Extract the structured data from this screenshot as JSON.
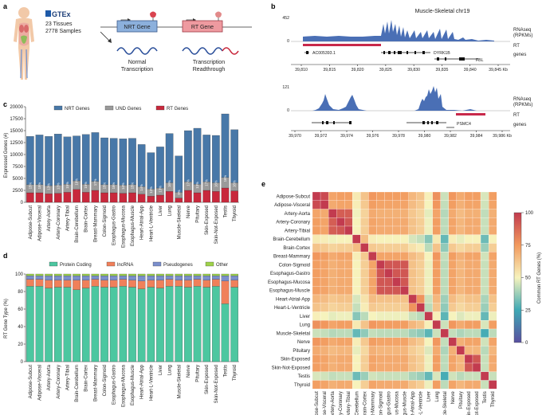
{
  "panels": {
    "a": "a",
    "b": "b",
    "c": "c",
    "d": "d",
    "e": "e"
  },
  "panel_a": {
    "gtex": "GTEx",
    "tissues": "23 Tissues",
    "samples": "2778 Samples",
    "nrt_gene": "NRT Gene",
    "rt_gene": "RT Gene",
    "normal_1": "Normal",
    "normal_2": "Transcription",
    "rt_1": "Transcription",
    "rt_2": "Readthrough"
  },
  "panel_b": {
    "title": "Muscle-Skeletal chr19",
    "top": {
      "ymax": "452",
      "y0": "0",
      "genes": [
        "AC005393.1",
        "DYRK1B",
        "FBL"
      ],
      "ticks": [
        "39,810",
        "39,815",
        "39,820",
        "39,825",
        "39,830",
        "39,835",
        "39,840",
        "39,845 Kb"
      ]
    },
    "bottom": {
      "ymax": "121",
      "y0": "0",
      "genes": [
        "PSMC4"
      ],
      "ticks": [
        "39,970",
        "39,972",
        "39,974",
        "39,976",
        "39,978",
        "39,980",
        "39,982",
        "39,984",
        "39,986 Kb"
      ]
    },
    "labels": {
      "rnaseq_1": "RNAseq",
      "rnaseq_2": "(RPKMs)",
      "rt": "RT",
      "genes": "genes"
    },
    "colors": {
      "signal": "#4a6fb5",
      "rt": "#c8284a"
    }
  },
  "tissues": [
    "Adipose-Subcut",
    "Adipose-Visceral",
    "Artery-Aorta",
    "Artery-Coronary",
    "Artery-Tibial",
    "Brain-Cerebellum",
    "Brain-Cortex",
    "Breast-Mammary",
    "Colon-Sigmoid",
    "Esophagus-Gastro",
    "Esophagus-Mucosa",
    "Esophagus-Muscle",
    "Heart-Atrial-App",
    "Heart-L-Ventricle",
    "Liver",
    "Lung",
    "Muscle-Skeletal",
    "Nerve",
    "Pituitary",
    "Skin-Exposed",
    "Skin-Not-Exposed",
    "Testis",
    "Thyroid"
  ],
  "chart_data": [
    {
      "type": "bar",
      "stacked": true,
      "ylabel": "Expressed Genes (#)",
      "ylim": [
        0,
        20000
      ],
      "yticks": [
        "0",
        "2500",
        "5000",
        "7500",
        "10000",
        "12500",
        "15000",
        "17500",
        "20000"
      ],
      "legend": [
        "NRT Genes",
        "UND Genes",
        "RT Genes"
      ],
      "colors": [
        "#4878a8",
        "#9a9a9a",
        "#c8283c"
      ],
      "series": [
        {
          "name": "RT Genes",
          "values": [
            2000,
            2000,
            1800,
            1900,
            2100,
            2700,
            2100,
            2500,
            2000,
            2000,
            1900,
            2000,
            1700,
            1300,
            1500,
            2300,
            900,
            2500,
            2000,
            2500,
            2300,
            3000,
            2400
          ]
        },
        {
          "name": "UND Genes",
          "values": [
            1700,
            1700,
            1700,
            1700,
            1700,
            1800,
            1700,
            1900,
            1700,
            1700,
            1700,
            1700,
            1600,
            1500,
            1500,
            1800,
            1200,
            1800,
            1800,
            1800,
            1800,
            2200,
            1700
          ]
        },
        {
          "name": "NRT Genes",
          "values": [
            10100,
            10400,
            10300,
            10700,
            9900,
            9400,
            10400,
            10200,
            9800,
            9700,
            9700,
            9700,
            8800,
            7600,
            8600,
            10300,
            7600,
            10700,
            11700,
            9800,
            9900,
            13300,
            11100
          ]
        }
      ],
      "percent_labels": [
        "15%",
        "15%",
        "13%",
        "13%",
        "15%",
        "19%",
        "15%",
        "17%",
        "15%",
        "15%",
        "14%",
        "15%",
        "14%",
        "13%",
        "13%",
        "16%",
        "9%",
        "17%",
        "13%",
        "17%",
        "16%",
        "16%",
        "16%"
      ]
    },
    {
      "type": "bar",
      "stacked": true,
      "ylabel": "RT Gene Type (%)",
      "ylim": [
        0,
        100
      ],
      "yticks": [
        "0",
        "20",
        "40",
        "60",
        "80",
        "100"
      ],
      "legend": [
        "Protein Coding",
        "lncRNA",
        "Pseudogenes",
        "Other"
      ],
      "colors": [
        "#4cc7a0",
        "#f0805a",
        "#7b8fcc",
        "#9ed24a"
      ],
      "series": [
        {
          "name": "Protein Coding",
          "values": [
            86,
            86,
            84,
            85,
            85,
            82,
            84,
            86,
            85,
            85,
            86,
            85,
            83,
            85,
            84,
            86,
            86,
            85,
            86,
            85,
            86,
            66,
            85
          ]
        },
        {
          "name": "lncRNA",
          "values": [
            8,
            8,
            9,
            8,
            8,
            11,
            9,
            8,
            8,
            8,
            8,
            8,
            9,
            8,
            9,
            8,
            7,
            8,
            8,
            8,
            8,
            26,
            8
          ]
        },
        {
          "name": "Pseudogenes",
          "values": [
            4,
            4,
            5,
            5,
            5,
            5,
            5,
            4,
            5,
            5,
            4,
            5,
            6,
            5,
            5,
            4,
            5,
            5,
            4,
            5,
            4,
            6,
            5
          ]
        },
        {
          "name": "Other",
          "values": [
            2,
            2,
            2,
            2,
            2,
            2,
            2,
            2,
            2,
            2,
            2,
            2,
            2,
            2,
            2,
            2,
            2,
            2,
            2,
            2,
            2,
            2,
            2
          ]
        }
      ]
    },
    {
      "type": "heatmap",
      "colorbar_label": "Common RT Genes (%)",
      "colorbar_ticks": [
        "0",
        "25",
        "50",
        "75",
        "100"
      ],
      "range": [
        0,
        100
      ]
    }
  ]
}
